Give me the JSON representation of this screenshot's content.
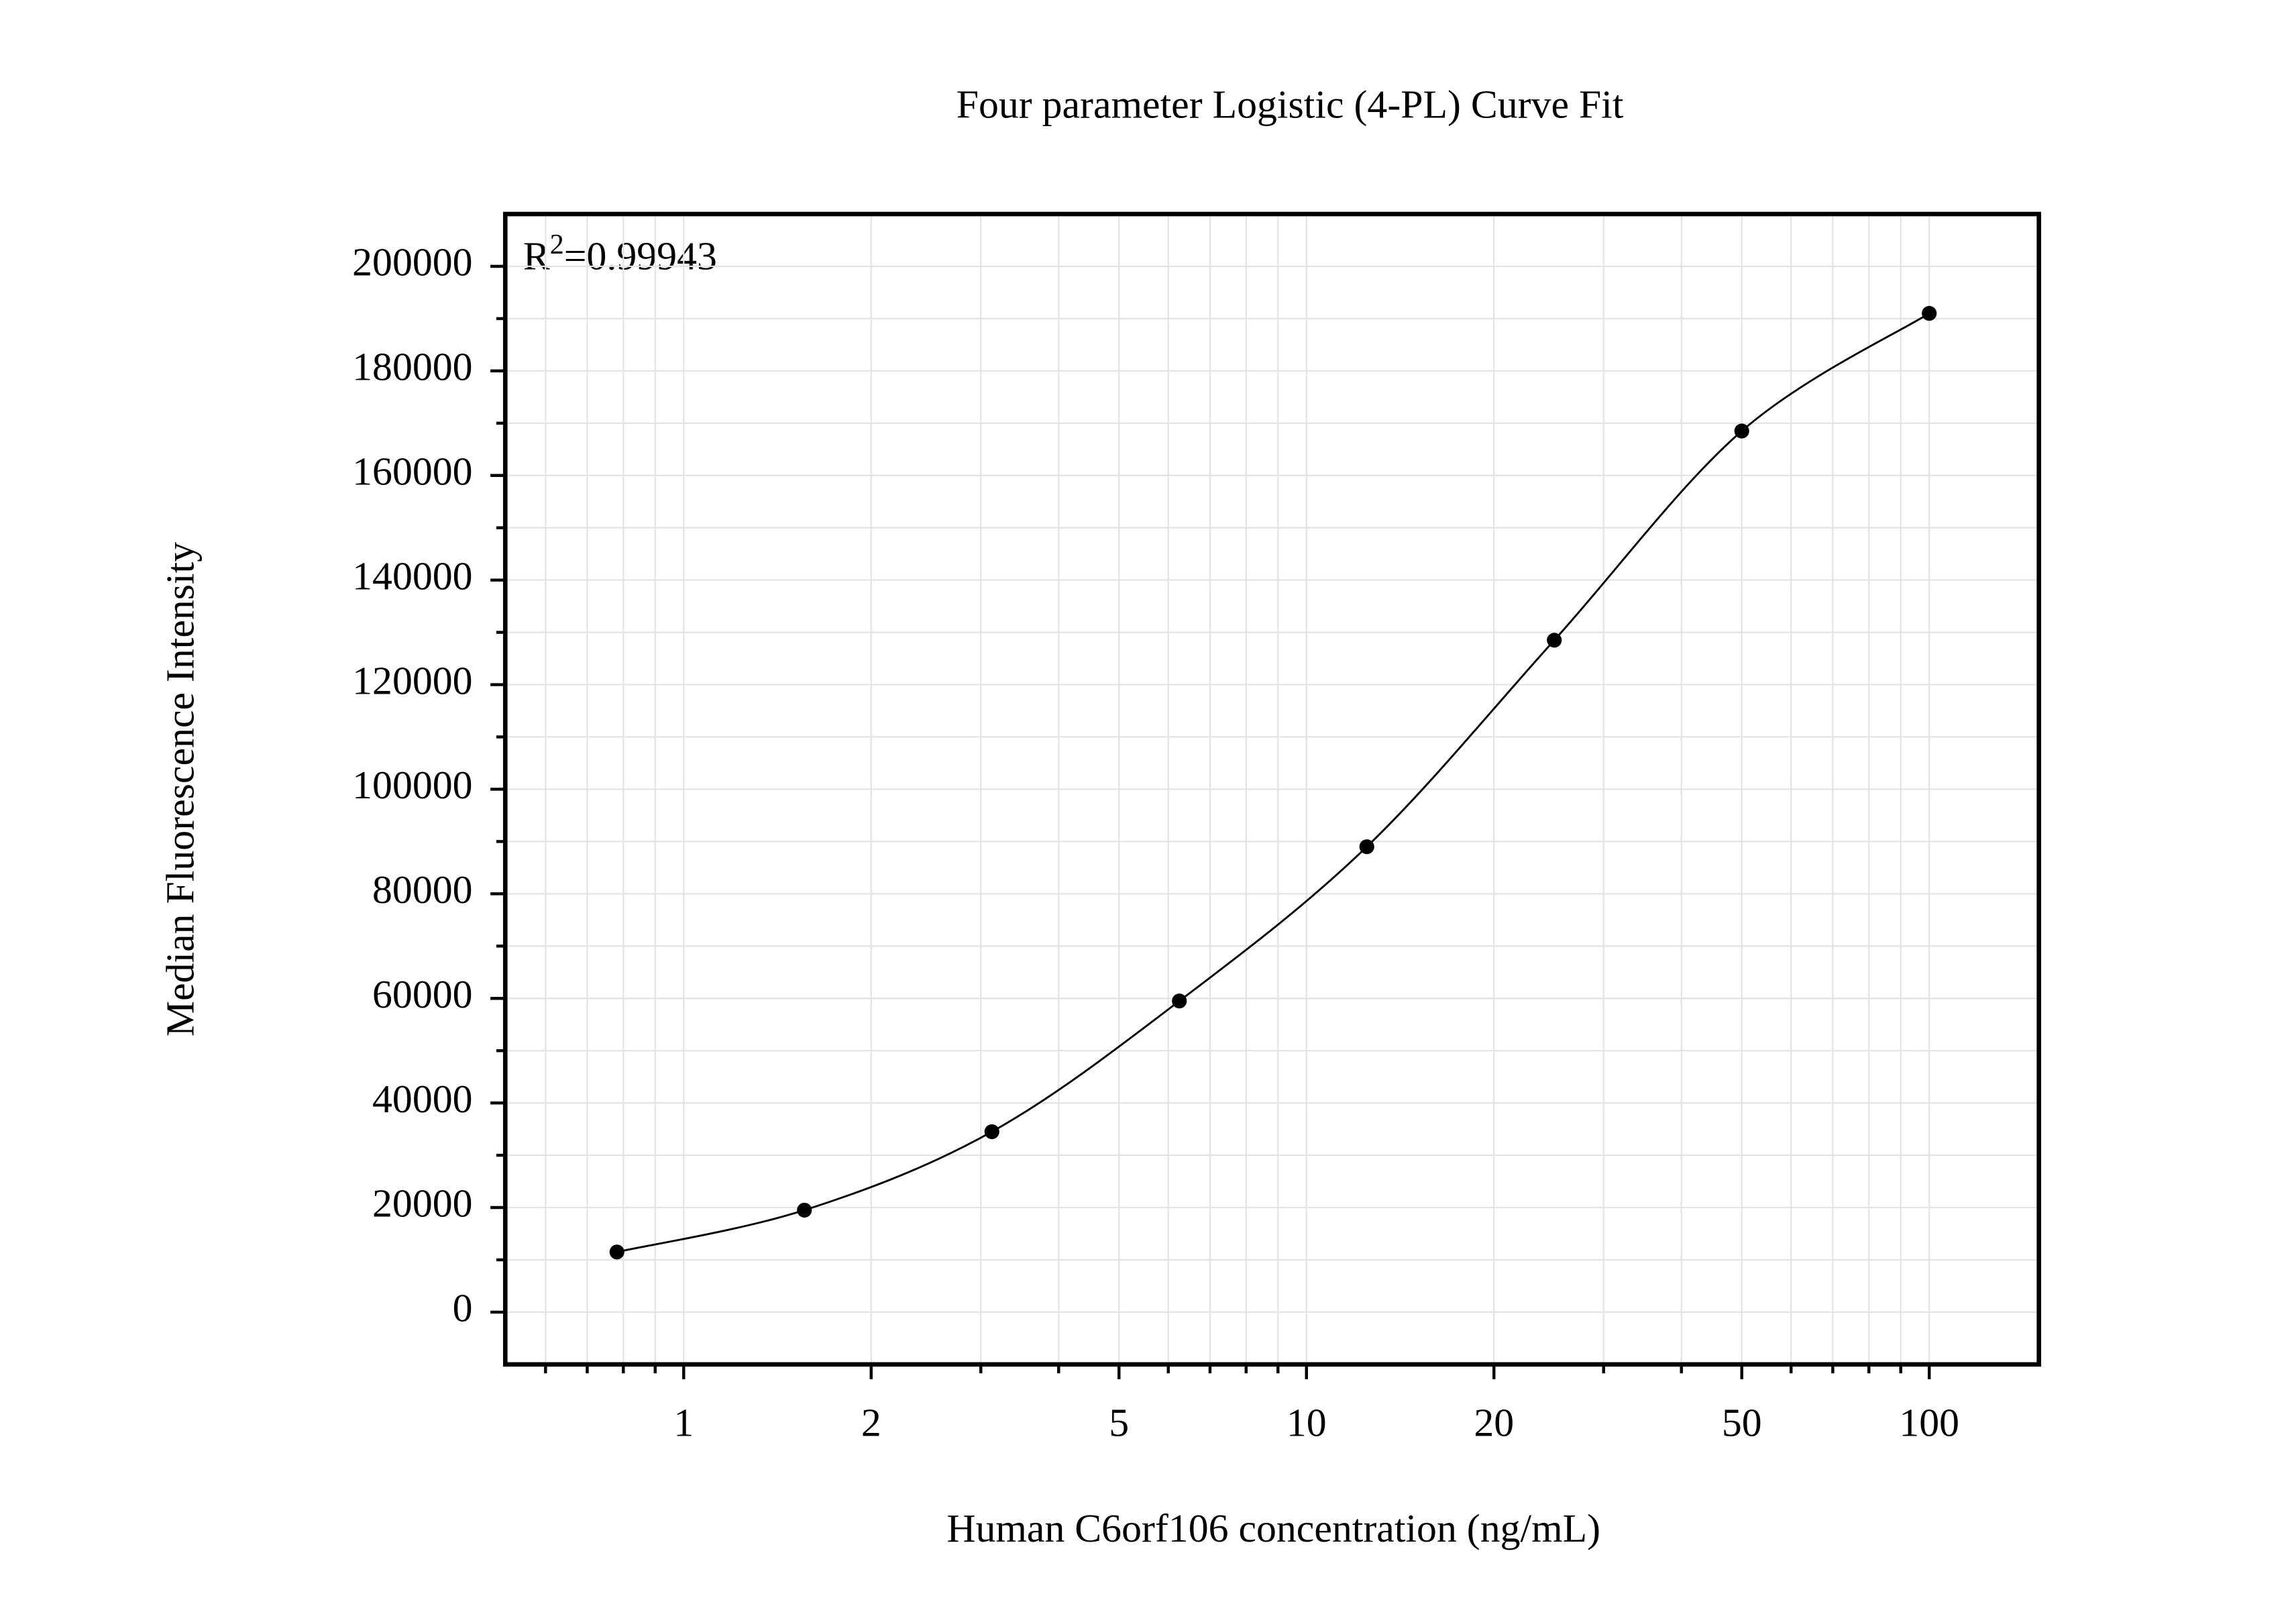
{
  "chart_data": {
    "type": "scatter",
    "title": "Four parameter Logistic (4-PL) Curve Fit",
    "x_label": "Human C6orf106 concentration (ng/mL)",
    "y_label": "Median Fluorescence Intensity",
    "annotation": [
      "R",
      "2",
      "=0.99943"
    ],
    "x": [
      0.78125,
      1.5625,
      3.125,
      6.25,
      12.5,
      25,
      50,
      100
    ],
    "series": [
      {
        "color": "#000000",
        "values": [
          11500,
          19500,
          34500,
          59500,
          89000,
          128500,
          168500,
          191000
        ]
      }
    ],
    "x_log": true,
    "xlim": [
      0.517,
      150
    ],
    "ylim": [
      -10000,
      210000
    ],
    "xticks": [
      1,
      2,
      5,
      10,
      20,
      50,
      100
    ],
    "xminorticks": [
      0.6,
      0.7,
      0.8,
      0.9,
      3,
      4,
      6,
      7,
      8,
      9,
      30,
      40,
      60,
      70,
      80,
      90
    ],
    "yticks": [
      0,
      20000,
      40000,
      60000,
      80000,
      100000,
      120000,
      140000,
      160000,
      180000,
      200000
    ],
    "yminorticks": [
      10000,
      30000,
      50000,
      70000,
      90000,
      110000,
      130000,
      150000,
      170000,
      190000
    ],
    "grid": true
  }
}
